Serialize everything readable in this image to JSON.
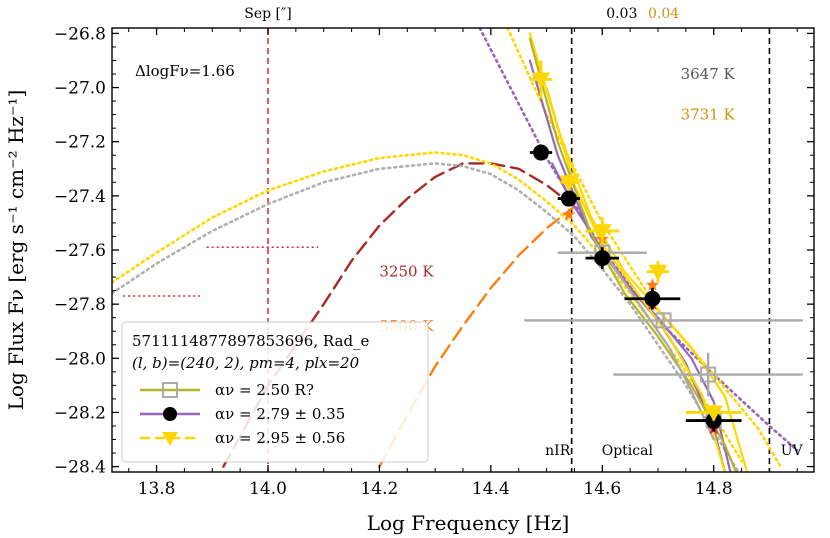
{
  "chart_data": {
    "type": "scatter",
    "title": "",
    "xlabel": "Log Frequency [Hz]",
    "ylabel": "Log Flux Fν [erg s⁻¹ cm⁻² Hz⁻¹]",
    "xlim": [
      13.72,
      14.98
    ],
    "ylim": [
      -28.42,
      -26.78
    ],
    "x_ticks": [
      13.8,
      14.0,
      14.2,
      14.4,
      14.6,
      14.8
    ],
    "x_tick_labels": [
      "13.8",
      "14.0",
      "14.2",
      "14.4",
      "14.6",
      "14.8"
    ],
    "y_ticks": [
      -28.4,
      -28.2,
      -28.0,
      -27.8,
      -27.6,
      -27.4,
      -27.2,
      -27.0,
      -26.8
    ],
    "y_tick_labels": [
      "−28.4",
      "−28.2",
      "−28.0",
      "−27.8",
      "−27.6",
      "−27.4",
      "−27.2",
      "−27.0",
      "−26.8"
    ],
    "top_axis": {
      "label": "Sep [″]",
      "labels": [
        {
          "text": "0.03",
          "x": 14.635,
          "color": "#000000"
        },
        {
          "text": "0.04",
          "x": 14.71,
          "color": "#c8960a"
        }
      ]
    },
    "band_dividers": [
      14.545,
      14.9
    ],
    "band_labels": [
      {
        "text": "nIR",
        "x": 14.52
      },
      {
        "text": "Optical",
        "x": 14.645
      },
      {
        "text": "UV",
        "x": 14.94
      }
    ],
    "sep_line_x": 14.0,
    "delta_label": "ΔlogFν=1.66",
    "temperature_labels": [
      {
        "text": "3647 K",
        "x": 14.78,
        "y": -26.95,
        "color": "#555555"
      },
      {
        "text": "3731 K",
        "x": 14.78,
        "y": -27.1,
        "color": "#c8960a"
      },
      {
        "text": "3250 K",
        "x": 14.2,
        "y": -27.68,
        "color": "#a52a2a"
      },
      {
        "text": "3500 K",
        "x": 14.2,
        "y": -27.88,
        "color": "#ff7f0e"
      }
    ],
    "blackbody_curves": [
      {
        "name": "3250 K",
        "color": "#a52a2a",
        "style": "dashed",
        "x": [
          13.92,
          14.0,
          14.05,
          14.1,
          14.15,
          14.2,
          14.25,
          14.3,
          14.35,
          14.4,
          14.45,
          14.5,
          14.55
        ],
        "y": [
          -28.4,
          -28.1,
          -27.95,
          -27.8,
          -27.64,
          -27.51,
          -27.41,
          -27.33,
          -27.28,
          -27.28,
          -27.3,
          -27.36,
          -27.44
        ]
      },
      {
        "name": "3500 K",
        "color": "#ff7f0e",
        "style": "dashed",
        "x": [
          14.2,
          14.25,
          14.3,
          14.35,
          14.4,
          14.45,
          14.5,
          14.55
        ],
        "y": [
          -28.4,
          -28.21,
          -28.03,
          -27.88,
          -27.74,
          -27.62,
          -27.52,
          -27.44
        ]
      },
      {
        "name": "3731 K fit",
        "color": "#ffd700",
        "style": "dotted",
        "x": [
          13.72,
          13.8,
          13.9,
          14.0,
          14.1,
          14.2,
          14.3,
          14.35,
          14.4,
          14.45,
          14.5,
          14.55,
          14.6,
          14.65,
          14.7,
          14.75,
          14.8,
          14.85
        ],
        "y": [
          -27.72,
          -27.61,
          -27.48,
          -27.38,
          -27.31,
          -27.26,
          -27.24,
          -27.25,
          -27.28,
          -27.34,
          -27.42,
          -27.51,
          -27.63,
          -27.76,
          -27.9,
          -28.05,
          -28.21,
          -28.38
        ]
      },
      {
        "name": "3647 K fit",
        "color": "#b0b0b0",
        "style": "dotted",
        "x": [
          13.72,
          13.8,
          13.9,
          14.0,
          14.1,
          14.2,
          14.3,
          14.35,
          14.4,
          14.45,
          14.5,
          14.55,
          14.6,
          14.65,
          14.7,
          14.75,
          14.8,
          14.85
        ],
        "y": [
          -27.76,
          -27.65,
          -27.53,
          -27.43,
          -27.35,
          -27.3,
          -27.28,
          -27.29,
          -27.32,
          -27.38,
          -27.46,
          -27.55,
          -27.67,
          -27.8,
          -27.95,
          -28.1,
          -28.27,
          -28.44
        ]
      }
    ],
    "powerlaw_curves": [
      {
        "name": "purple dotted",
        "color": "#9467bd",
        "style": "dotted",
        "x": [
          14.38,
          14.5,
          14.6,
          14.7,
          14.8,
          14.9,
          14.95
        ],
        "y": [
          -26.78,
          -27.26,
          -27.6,
          -27.86,
          -28.06,
          -28.25,
          -28.34
        ]
      },
      {
        "name": "yellow dotted",
        "color": "#ffd700",
        "style": "dotted",
        "x": [
          14.43,
          14.5,
          14.6,
          14.7,
          14.8,
          14.88,
          14.92
        ],
        "y": [
          -26.78,
          -27.1,
          -27.5,
          -27.82,
          -28.06,
          -28.26,
          -28.4
        ]
      },
      {
        "name": "purple solid A",
        "color": "#9467bd",
        "style": "solid",
        "x": [
          14.51,
          14.55,
          14.6,
          14.65,
          14.7,
          14.75,
          14.8,
          14.82
        ],
        "y": [
          -27.28,
          -27.44,
          -27.6,
          -27.74,
          -27.86,
          -28.02,
          -28.26,
          -28.42
        ]
      },
      {
        "name": "purple solid B",
        "color": "#9467bd",
        "style": "solid",
        "x": [
          14.47,
          14.52,
          14.58,
          14.64,
          14.7,
          14.76,
          14.8,
          14.83
        ],
        "y": [
          -26.9,
          -27.25,
          -27.55,
          -27.72,
          -27.85,
          -28.0,
          -28.16,
          -28.42
        ]
      },
      {
        "name": "yellow solid A",
        "color": "#ffd700",
        "style": "solid",
        "x": [
          14.47,
          14.52,
          14.58,
          14.64,
          14.7,
          14.76,
          14.82,
          14.86
        ],
        "y": [
          -26.8,
          -27.15,
          -27.48,
          -27.68,
          -27.82,
          -27.96,
          -28.14,
          -28.42
        ]
      },
      {
        "name": "yellow solid B",
        "color": "#ffd700",
        "style": "solid",
        "x": [
          14.5,
          14.55,
          14.6,
          14.66,
          14.72,
          14.78,
          14.82
        ],
        "y": [
          -27.0,
          -27.36,
          -27.58,
          -27.75,
          -27.92,
          -28.14,
          -28.42
        ]
      },
      {
        "name": "olive solid",
        "color": "#b5b52a",
        "style": "solid",
        "x": [
          14.47,
          14.52,
          14.58,
          14.64,
          14.7,
          14.76,
          14.82,
          14.84
        ],
        "y": [
          -26.82,
          -27.2,
          -27.54,
          -27.76,
          -27.92,
          -28.1,
          -28.32,
          -28.42
        ]
      },
      {
        "name": "grey solid",
        "color": "#aaaaaa",
        "style": "solid",
        "x": [
          14.6,
          14.66,
          14.72,
          14.76,
          14.8
        ],
        "y": [
          -27.6,
          -27.78,
          -27.96,
          -28.12,
          -28.3
        ]
      }
    ],
    "horizontal_limits": [
      {
        "color": "#d62728",
        "y": -27.59,
        "x0": 13.89,
        "x1": 14.09
      },
      {
        "color": "#d62728",
        "y": -27.77,
        "x0": 13.74,
        "x1": 13.88
      }
    ],
    "series": [
      {
        "name": "grey open squares",
        "color": "#aaaaaa",
        "marker": "square-open",
        "points": [
          {
            "x": 14.6,
            "y": -27.61,
            "xerr": 0.08,
            "yerr": 0.03
          },
          {
            "x": 14.71,
            "y": -27.86,
            "xerr": 0.25,
            "yerr": 0.03
          },
          {
            "x": 14.79,
            "y": -28.06,
            "xerr": 0.17,
            "yerr": 0.08
          },
          {
            "x": 14.8,
            "y": -28.23,
            "xerr": 0.0,
            "yerr": 0.0
          }
        ]
      },
      {
        "name": "orange stars",
        "color": "#ff7f0e",
        "marker": "star",
        "points": [
          {
            "x": 14.54,
            "y": -27.47
          },
          {
            "x": 14.6,
            "y": -27.56
          },
          {
            "x": 14.69,
            "y": -27.73
          },
          {
            "x": 14.8,
            "y": -28.21
          }
        ]
      },
      {
        "name": "red stars",
        "color": "#d62728",
        "marker": "star",
        "points": [
          {
            "x": 14.54,
            "y": -27.42
          },
          {
            "x": 14.69,
            "y": -27.8
          },
          {
            "x": 14.8,
            "y": -28.26
          }
        ]
      },
      {
        "name": "black circles",
        "color": "#000000",
        "marker": "circle",
        "points": [
          {
            "x": 14.49,
            "y": -27.24,
            "xerr": 0.02,
            "yerr": 0.02
          },
          {
            "x": 14.54,
            "y": -27.41,
            "xerr": 0.02,
            "yerr": 0.02
          },
          {
            "x": 14.6,
            "y": -27.63,
            "xerr": 0.03,
            "yerr": 0.04
          },
          {
            "x": 14.69,
            "y": -27.78,
            "xerr": 0.05,
            "yerr": 0.04
          },
          {
            "x": 14.8,
            "y": -28.23,
            "xerr": 0.05,
            "yerr": 0.04
          }
        ]
      },
      {
        "name": "yellow triangles",
        "color": "#ffd700",
        "marker": "triangle-down",
        "points": [
          {
            "x": 14.49,
            "y": -26.97,
            "xerr": 0.02,
            "yerr": 0.07
          },
          {
            "x": 14.54,
            "y": -27.35,
            "xerr": 0.015,
            "yerr": 0.03
          },
          {
            "x": 14.6,
            "y": -27.53,
            "xerr": 0.03,
            "yerr": 0.05
          },
          {
            "x": 14.7,
            "y": -27.68,
            "xerr": 0.02,
            "yerr": 0.04
          },
          {
            "x": 14.8,
            "y": -28.2,
            "xerr": 0.05,
            "yerr": 0.03
          }
        ]
      }
    ],
    "legend": {
      "position": "lower-left",
      "title_line1": "5711114877897853696, Rad_e",
      "title_line2": "(l, b)=(240, 2), pm=4, plx=20",
      "entries": [
        {
          "label": "αν =  2.50   R?",
          "color": "#b5b52a",
          "marker": "square-open",
          "line": "solid"
        },
        {
          "label": "αν =  2.79 ± 0.35",
          "color": "#9467bd",
          "marker": "circle",
          "line": "solid"
        },
        {
          "label": "αν =  2.95 ± 0.56",
          "color": "#ffd700",
          "marker": "triangle-down",
          "line": "dashed"
        }
      ]
    }
  }
}
